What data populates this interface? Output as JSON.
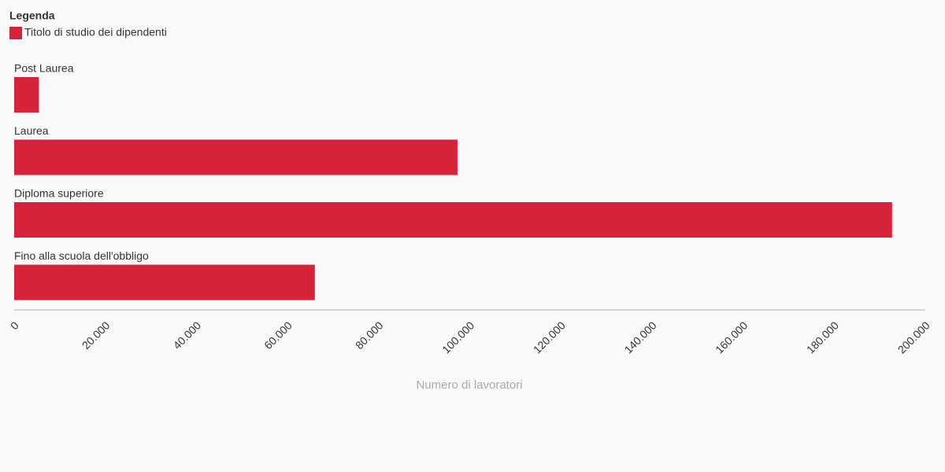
{
  "chart_data": {
    "type": "bar",
    "orientation": "horizontal",
    "legend_title": "Legenda",
    "legend_position": "top-left",
    "categories": [
      "Post Laurea",
      "Laurea",
      "Diploma superiore",
      "Fino alla scuola dell'obbligo"
    ],
    "series": [
      {
        "name": "Titolo di studio dei dipendenti",
        "color": "#d62339",
        "values": [
          5400,
          97300,
          192700,
          66000
        ]
      }
    ],
    "x_label": "Numero di lavoratori",
    "xlim": [
      0,
      200000
    ],
    "xticks": [
      0,
      {
        "value": 20000,
        "label": "20.000"
      },
      {
        "value": 40000,
        "label": "40.000"
      },
      {
        "value": 60000,
        "label": "60.000"
      },
      {
        "value": 80000,
        "label": "80.000"
      },
      {
        "value": 100000,
        "label": "100.000"
      },
      {
        "value": 120000,
        "label": "120.000"
      },
      {
        "value": 140000,
        "label": "140.000"
      },
      {
        "value": 160000,
        "label": "160.000"
      },
      {
        "value": 180000,
        "label": "180.000"
      },
      {
        "value": 200000,
        "label": "200.000"
      }
    ],
    "grid": false
  }
}
